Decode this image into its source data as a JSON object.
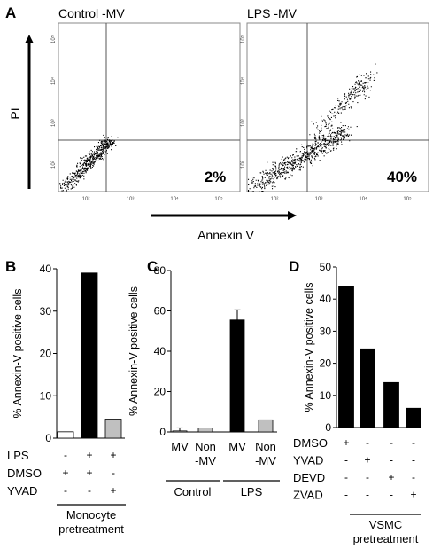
{
  "panel_a": {
    "letter": "A",
    "plot_titles": [
      "Control  -MV",
      "LPS  -MV"
    ],
    "percent_labels": [
      "2%",
      "40%"
    ],
    "y_axis_label": "PI",
    "x_axis_label": "Annexin V",
    "tick_labels": [
      "10²",
      "10³",
      "10⁴",
      "10⁵"
    ]
  },
  "chart_data": [
    {
      "panel": "B",
      "type": "bar",
      "ylabel": "% Annexin-V positive cells",
      "ylim": [
        0,
        40
      ],
      "yticks": [
        0,
        10,
        20,
        30,
        40
      ],
      "values": [
        1.5,
        39,
        4.5
      ],
      "bar_colors": [
        "#ffffff",
        "#000000",
        "#c0c0c0"
      ],
      "treatment_rows": [
        {
          "label": "LPS",
          "marks": [
            "-",
            "+",
            "+"
          ]
        },
        {
          "label": "DMSO",
          "marks": [
            "+",
            "+",
            "-"
          ]
        },
        {
          "label": "YVAD",
          "marks": [
            "-",
            "-",
            "+"
          ]
        }
      ],
      "group_label": [
        "Monocyte",
        "pretreatment"
      ]
    },
    {
      "panel": "C",
      "type": "bar",
      "ylabel": "% Annexin-V positive cells",
      "ylim": [
        0,
        80
      ],
      "yticks": [
        0,
        20,
        40,
        60,
        80
      ],
      "categories": [
        [
          "MV"
        ],
        [
          "Non",
          "-MV"
        ],
        [
          "MV"
        ],
        [
          "Non",
          "-MV"
        ]
      ],
      "values": [
        0.5,
        2,
        55.5,
        6
      ],
      "errors": [
        1.5,
        0,
        5,
        0
      ],
      "bar_colors": [
        "#ffffff",
        "#c0c0c0",
        "#000000",
        "#c0c0c0"
      ],
      "groups": [
        {
          "label": "Control",
          "members": [
            0,
            1
          ]
        },
        {
          "label": "LPS",
          "members": [
            2,
            3
          ]
        }
      ]
    },
    {
      "panel": "D",
      "type": "bar",
      "ylabel": "% Annexin-V positive cells",
      "ylim": [
        0,
        50
      ],
      "yticks": [
        0,
        10,
        20,
        30,
        40,
        50
      ],
      "values": [
        44,
        24.5,
        14,
        6
      ],
      "bar_colors": [
        "#000000",
        "#000000",
        "#000000",
        "#000000"
      ],
      "treatment_rows": [
        {
          "label": "DMSO",
          "marks": [
            "+",
            "-",
            "-",
            "-"
          ]
        },
        {
          "label": "YVAD",
          "marks": [
            "-",
            "+",
            "-",
            "-"
          ]
        },
        {
          "label": "DEVD",
          "marks": [
            "-",
            "-",
            "+",
            "-"
          ]
        },
        {
          "label": "ZVAD",
          "marks": [
            "-",
            "-",
            "-",
            "+"
          ]
        }
      ],
      "group_label": [
        "VSMC",
        "pretreatment"
      ]
    }
  ]
}
